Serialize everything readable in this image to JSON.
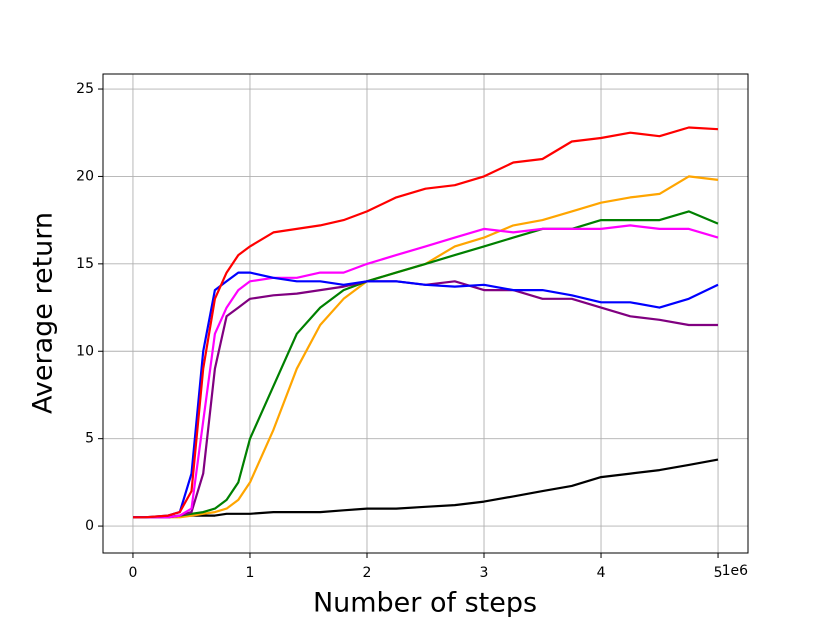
{
  "chart_data": {
    "type": "line",
    "xlabel": "Number of steps",
    "ylabel": "Average return",
    "x_offset_label": "1e6",
    "x": [
      0,
      0.1,
      0.3,
      0.4,
      0.5,
      0.6,
      0.7,
      0.8,
      0.9,
      1.0,
      1.2,
      1.4,
      1.6,
      1.8,
      2.0,
      2.25,
      2.5,
      2.75,
      3.0,
      3.25,
      3.5,
      3.75,
      4.0,
      4.25,
      4.5,
      4.75,
      5.0
    ],
    "series": [
      {
        "color": "#000000",
        "values": [
          0.5,
          0.5,
          0.5,
          0.6,
          0.6,
          0.6,
          0.6,
          0.7,
          0.7,
          0.7,
          0.8,
          0.8,
          0.8,
          0.9,
          1,
          1,
          1.1,
          1.2,
          1.4,
          1.7,
          2,
          2.3,
          2.8,
          3,
          3.2,
          3.5,
          3.8
        ]
      },
      {
        "color": "#ffa500",
        "values": [
          0.5,
          0.5,
          0.5,
          0.5,
          0.6,
          0.7,
          0.8,
          1,
          1.5,
          2.5,
          5.5,
          9,
          11.5,
          13,
          14,
          14.5,
          15,
          16,
          16.5,
          17.2,
          17.5,
          18,
          18.5,
          18.8,
          19,
          20,
          19.8
        ]
      },
      {
        "color": "#008000",
        "values": [
          0.5,
          0.5,
          0.5,
          0.6,
          0.7,
          0.8,
          1,
          1.5,
          2.5,
          5,
          8,
          11,
          12.5,
          13.5,
          14,
          14.5,
          15,
          15.5,
          16,
          16.5,
          17,
          17,
          17.5,
          17.5,
          17.5,
          18,
          17.3
        ]
      },
      {
        "color": "#800080",
        "values": [
          0.5,
          0.5,
          0.5,
          0.6,
          0.8,
          3,
          9,
          12,
          12.5,
          13,
          13.2,
          13.3,
          13.5,
          13.7,
          14,
          14,
          13.8,
          14,
          13.5,
          13.5,
          13,
          13,
          12.5,
          12,
          11.8,
          11.5,
          11.5
        ]
      },
      {
        "color": "#ff00ff",
        "values": [
          0.5,
          0.5,
          0.5,
          0.6,
          1,
          6,
          11,
          12.5,
          13.5,
          14,
          14.2,
          14.2,
          14.5,
          14.5,
          15,
          15.5,
          16,
          16.5,
          17,
          16.8,
          17,
          17,
          17,
          17.2,
          17,
          17,
          16.5
        ]
      },
      {
        "color": "#0000ff",
        "values": [
          0.5,
          0.5,
          0.6,
          0.8,
          3,
          10,
          13.5,
          14,
          14.5,
          14.5,
          14.2,
          14,
          14,
          13.8,
          14,
          14,
          13.8,
          13.7,
          13.8,
          13.5,
          13.5,
          13.2,
          12.8,
          12.8,
          12.5,
          13,
          13.8
        ]
      },
      {
        "color": "#ff0000",
        "values": [
          0.5,
          0.5,
          0.6,
          0.8,
          2,
          9,
          13,
          14.5,
          15.5,
          16,
          16.8,
          17,
          17.2,
          17.5,
          18,
          18.8,
          19.3,
          19.5,
          20,
          20.8,
          21,
          22,
          22.2,
          22.5,
          22.3,
          22.8,
          22.7
        ]
      }
    ],
    "xlim": [
      -0.256,
      5.256
    ],
    "ylim": [
      -1.54,
      25.86
    ],
    "xticks": [
      0,
      1,
      2,
      3,
      4,
      5
    ],
    "yticks": [
      0,
      5,
      10,
      15,
      20,
      25
    ],
    "grid": true
  }
}
